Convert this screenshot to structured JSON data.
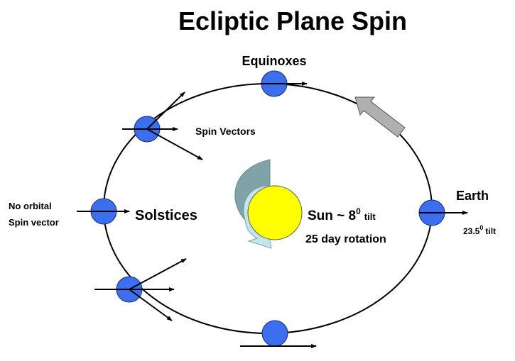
{
  "title": "Ecliptic Plane Spin",
  "labels": {
    "equinoxes": "Equinoxes",
    "spin_vectors": "Spin Vectors",
    "solstices": "Solstices",
    "no_orbital": [
      "No orbital",
      "Spin vector"
    ],
    "earth": "Earth",
    "earth_tilt": {
      "value": "23.5",
      "superscript": "0",
      "unit": "tilt"
    },
    "sun_tilt": {
      "text": "Sun ~ 8",
      "superscript": "0",
      "unit": "tilt"
    },
    "sun_rotation": "25 day rotation"
  }
}
